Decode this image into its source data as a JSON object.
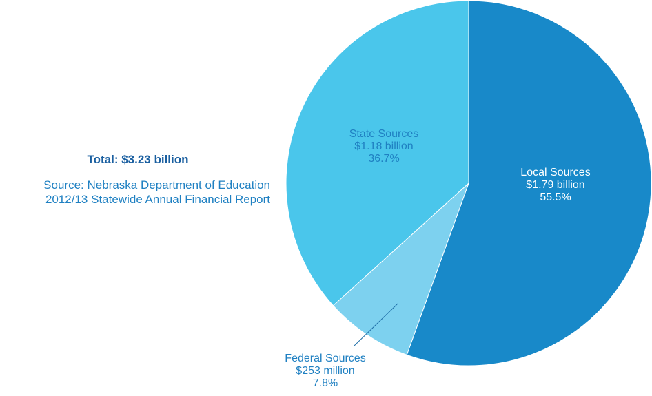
{
  "summary": {
    "total": "Total: $3.23 billion",
    "source_line1": "Source: Nebraska Department of Education",
    "source_line2": "2012/13 Statewide Annual Financial Report"
  },
  "colors": {
    "local": "#1889c9",
    "state": "#4ac6eb",
    "federal": "#7dd1ef",
    "label_dark_text": "#1f80c2",
    "label_light_text": "#ffffff",
    "leader_line": "#1f6fa8"
  },
  "chart_data": {
    "type": "pie",
    "slices": [
      {
        "label": "Local Sources",
        "amount": "$1.79 billion",
        "percent": "55.5%",
        "value": 55.5
      },
      {
        "label": "Federal Sources",
        "amount": "$253 million",
        "percent": "7.8%",
        "value": 7.8
      },
      {
        "label": "State Sources",
        "amount": "$1.18 billion",
        "percent": "36.7%",
        "value": 36.7
      }
    ],
    "start_angle": "12 o'clock",
    "direction": "clockwise"
  }
}
